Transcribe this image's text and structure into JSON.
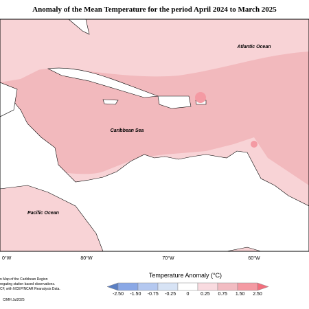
{
  "header": {
    "title": "Anomaly of the Mean Temperature for the period April 2024 to March 2025"
  },
  "map": {
    "labels": [
      "Atlantic Ocean",
      "Caribbean Sea",
      "Pacific Ocean"
    ],
    "longitudes": [
      "0°W",
      "80°W",
      "70°W",
      "60°W"
    ]
  },
  "legend": {
    "title": "Temperature Anomaly (°C)",
    "ticks": [
      "-2.50",
      "-1.50",
      "-0.75",
      "-0.25",
      "0",
      "0.25",
      "0.75",
      "1.50",
      "2.50"
    ],
    "colors": [
      "#5a7fc4",
      "#8aa8e6",
      "#b4c8f0",
      "#d7e3f5",
      "#ffffff",
      "#f9dbe0",
      "#f2bcc2",
      "#f49aa3",
      "#f26f7d"
    ]
  },
  "footer": {
    "lines": [
      "n Map of the Caribbean Region",
      "regating station based observations.",
      "CF, with NCEP/NCAR Reanalysis Data."
    ],
    "credit": "CIMH Jul2025"
  }
}
